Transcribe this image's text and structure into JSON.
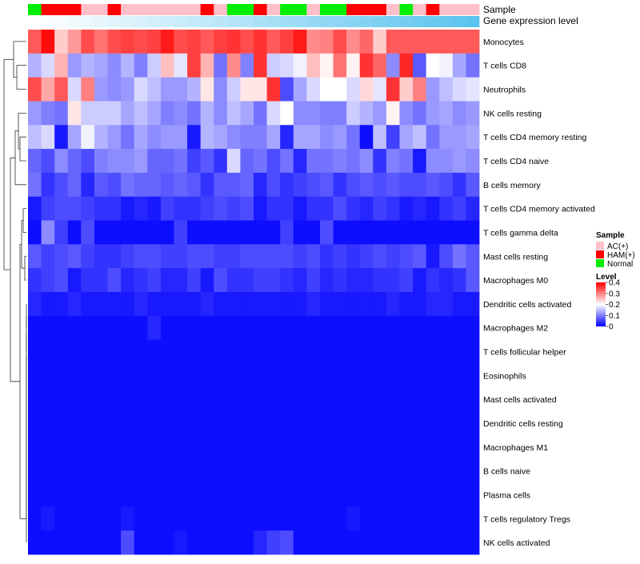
{
  "colors": {
    "low": "#0000ff",
    "mid": "#ffffff",
    "high": "#ff0000",
    "sample_ac": "#ffc0cb",
    "sample_ham": "#ff0000",
    "sample_normal": "#00ee00",
    "expression_annotation": "#5bc4ee"
  },
  "chart_data": {
    "type": "heatmap",
    "annotation_labels": {
      "sample": "Sample",
      "expression": "Gene expression level"
    },
    "legend": {
      "sample_title": "Sample",
      "sample_entries": [
        "AC(+)",
        "HAM(+)",
        "Normal"
      ],
      "level_title": "Level",
      "level_ticks": [
        "0.4",
        "0.3",
        "0.2",
        "0.1",
        "0"
      ],
      "level_tick_values": [
        0.4,
        0.3,
        0.2,
        0.1,
        0
      ],
      "level_range": [
        0,
        0.4
      ]
    },
    "columns_sample_group": [
      "Normal",
      "HAM(+)",
      "HAM(+)",
      "HAM(+)",
      "AC(+)",
      "AC(+)",
      "HAM(+)",
      "AC(+)",
      "AC(+)",
      "AC(+)",
      "AC(+)",
      "AC(+)",
      "AC(+)",
      "HAM(+)",
      "AC(+)",
      "Normal",
      "Normal",
      "HAM(+)",
      "AC(+)",
      "Normal",
      "Normal",
      "AC(+)",
      "Normal",
      "Normal",
      "HAM(+)",
      "HAM(+)",
      "HAM(+)",
      "AC(+)",
      "Normal",
      "AC(+)",
      "HAM(+)",
      "AC(+)",
      "AC(+)",
      "AC(+)"
    ],
    "expression_fraction": [
      0.0,
      0.03,
      0.06,
      0.09,
      0.12,
      0.15,
      0.18,
      0.21,
      0.24,
      0.27,
      0.3,
      0.33,
      0.36,
      0.39,
      0.42,
      0.45,
      0.48,
      0.52,
      0.55,
      0.58,
      0.61,
      0.64,
      0.67,
      0.7,
      0.73,
      0.76,
      0.79,
      0.82,
      0.85,
      0.88,
      0.91,
      0.94,
      0.97,
      1.0
    ],
    "rows": [
      {
        "label": "Monocytes",
        "values": [
          0.33,
          0.39,
          0.24,
          0.28,
          0.34,
          0.31,
          0.34,
          0.35,
          0.34,
          0.35,
          0.38,
          0.34,
          0.35,
          0.33,
          0.35,
          0.36,
          0.34,
          0.36,
          0.33,
          0.35,
          0.38,
          0.29,
          0.3,
          0.34,
          0.29,
          0.32,
          0.24,
          0.33,
          0.33,
          0.33,
          0.33,
          0.33,
          0.33,
          0.33
        ]
      },
      {
        "label": "T cells CD8",
        "values": [
          0.14,
          0.17,
          0.26,
          0.12,
          0.14,
          0.13,
          0.11,
          0.14,
          0.1,
          0.16,
          0.25,
          0.18,
          0.35,
          0.26,
          0.09,
          0.29,
          0.1,
          0.36,
          0.16,
          0.17,
          0.19,
          0.25,
          0.21,
          0.31,
          0.21,
          0.36,
          0.32,
          0.11,
          0.37,
          0.07,
          0.2,
          0.19,
          0.13,
          0.09
        ]
      },
      {
        "label": "Neutrophils",
        "values": [
          0.34,
          0.27,
          0.33,
          0.17,
          0.3,
          0.12,
          0.11,
          0.12,
          0.17,
          0.15,
          0.12,
          0.12,
          0.14,
          0.22,
          0.11,
          0.16,
          0.22,
          0.22,
          0.36,
          0.06,
          0.13,
          0.17,
          0.2,
          0.2,
          0.17,
          0.23,
          0.18,
          0.36,
          0.24,
          0.3,
          0.12,
          0.15,
          0.17,
          0.18
        ]
      },
      {
        "label": "NK cells resting",
        "values": [
          0.12,
          0.1,
          0.09,
          0.22,
          0.16,
          0.16,
          0.16,
          0.13,
          0.15,
          0.13,
          0.1,
          0.11,
          0.09,
          0.14,
          0.11,
          0.15,
          0.13,
          0.09,
          0.17,
          0.2,
          0.11,
          0.11,
          0.1,
          0.1,
          0.16,
          0.14,
          0.12,
          0.21,
          0.11,
          0.09,
          0.12,
          0.13,
          0.11,
          0.12
        ]
      },
      {
        "label": "T cells CD4 memory resting",
        "values": [
          0.15,
          0.17,
          0.02,
          0.13,
          0.19,
          0.14,
          0.12,
          0.09,
          0.13,
          0.11,
          0.12,
          0.12,
          0.02,
          0.14,
          0.13,
          0.11,
          0.1,
          0.1,
          0.13,
          0.03,
          0.13,
          0.13,
          0.11,
          0.12,
          0.09,
          0.01,
          0.15,
          0.05,
          0.13,
          0.15,
          0.09,
          0.12,
          0.12,
          0.13
        ]
      },
      {
        "label": "T cells CD4 naive",
        "values": [
          0.08,
          0.06,
          0.11,
          0.08,
          0.06,
          0.1,
          0.11,
          0.11,
          0.12,
          0.08,
          0.08,
          0.09,
          0.05,
          0.07,
          0.04,
          0.17,
          0.08,
          0.09,
          0.06,
          0.09,
          0.03,
          0.09,
          0.09,
          0.1,
          0.09,
          0.11,
          0.04,
          0.1,
          0.09,
          0.02,
          0.11,
          0.11,
          0.12,
          0.11
        ]
      },
      {
        "label": "B cells memory",
        "values": [
          0.09,
          0.04,
          0.06,
          0.08,
          0.03,
          0.07,
          0.06,
          0.09,
          0.08,
          0.08,
          0.07,
          0.08,
          0.07,
          0.04,
          0.07,
          0.07,
          0.08,
          0.03,
          0.06,
          0.04,
          0.05,
          0.06,
          0.07,
          0.04,
          0.06,
          0.07,
          0.06,
          0.07,
          0.06,
          0.06,
          0.07,
          0.06,
          0.04,
          0.07
        ]
      },
      {
        "label": "T cells CD4 memory activated",
        "values": [
          0.02,
          0.05,
          0.06,
          0.06,
          0.05,
          0.04,
          0.04,
          0.02,
          0.03,
          0.02,
          0.05,
          0.04,
          0.04,
          0.05,
          0.06,
          0.05,
          0.06,
          0.02,
          0.04,
          0.04,
          0.02,
          0.04,
          0.04,
          0.06,
          0.04,
          0.03,
          0.05,
          0.04,
          0.02,
          0.03,
          0.02,
          0.04,
          0.05,
          0.03
        ]
      },
      {
        "label": "T cells gamma delta",
        "values": [
          0.01,
          0.11,
          0.05,
          0.01,
          0.06,
          0.01,
          0.01,
          0.01,
          0.01,
          0.01,
          0.01,
          0.05,
          0.01,
          0.01,
          0.01,
          0.01,
          0.01,
          0.01,
          0.01,
          0.05,
          0.01,
          0.01,
          0.06,
          0.01,
          0.01,
          0.01,
          0.01,
          0.01,
          0.01,
          0.01,
          0.01,
          0.01,
          0.01,
          0.01
        ]
      },
      {
        "label": "Mast cells resting",
        "values": [
          0.07,
          0.05,
          0.06,
          0.07,
          0.05,
          0.04,
          0.04,
          0.05,
          0.06,
          0.06,
          0.05,
          0.05,
          0.06,
          0.06,
          0.05,
          0.05,
          0.06,
          0.06,
          0.06,
          0.06,
          0.05,
          0.06,
          0.04,
          0.05,
          0.04,
          0.05,
          0.06,
          0.05,
          0.06,
          0.07,
          0.02,
          0.06,
          0.09,
          0.07
        ]
      },
      {
        "label": "Macrophages M0",
        "values": [
          0.04,
          0.05,
          0.06,
          0.02,
          0.04,
          0.04,
          0.06,
          0.03,
          0.04,
          0.05,
          0.03,
          0.03,
          0.05,
          0.02,
          0.06,
          0.04,
          0.04,
          0.05,
          0.05,
          0.04,
          0.03,
          0.05,
          0.03,
          0.04,
          0.03,
          0.03,
          0.04,
          0.04,
          0.05,
          0.02,
          0.04,
          0.03,
          0.04,
          0.07
        ]
      },
      {
        "label": "Dendritic cells activated",
        "values": [
          0.03,
          0.02,
          0.02,
          0.03,
          0.02,
          0.02,
          0.02,
          0.02,
          0.03,
          0.02,
          0.02,
          0.02,
          0.02,
          0.03,
          0.02,
          0.02,
          0.02,
          0.02,
          0.02,
          0.02,
          0.02,
          0.03,
          0.02,
          0.02,
          0.02,
          0.02,
          0.02,
          0.03,
          0.02,
          0.02,
          0.03,
          0.03,
          0.02,
          0.02
        ]
      },
      {
        "label": "Macrophages M2",
        "values": [
          0.01,
          0.01,
          0.01,
          0.01,
          0.01,
          0.01,
          0.01,
          0.01,
          0.01,
          0.03,
          0.01,
          0.01,
          0.01,
          0.01,
          0.01,
          0.01,
          0.01,
          0.01,
          0.01,
          0.01,
          0.01,
          0.01,
          0.01,
          0.01,
          0.01,
          0.01,
          0.01,
          0.01,
          0.01,
          0.01,
          0.01,
          0.01,
          0.01,
          0.01
        ]
      },
      {
        "label": "T cells follicular helper",
        "values": [
          0.01,
          0.01,
          0.01,
          0.01,
          0.01,
          0.01,
          0.01,
          0.01,
          0.01,
          0.01,
          0.01,
          0.01,
          0.01,
          0.01,
          0.01,
          0.01,
          0.01,
          0.01,
          0.01,
          0.01,
          0.01,
          0.01,
          0.01,
          0.01,
          0.01,
          0.01,
          0.01,
          0.01,
          0.01,
          0.01,
          0.01,
          0.01,
          0.01,
          0.01
        ]
      },
      {
        "label": "Eosinophils",
        "values": [
          0.01,
          0.01,
          0.01,
          0.01,
          0.01,
          0.01,
          0.01,
          0.01,
          0.01,
          0.01,
          0.01,
          0.01,
          0.01,
          0.01,
          0.01,
          0.01,
          0.01,
          0.01,
          0.01,
          0.01,
          0.01,
          0.01,
          0.01,
          0.01,
          0.01,
          0.01,
          0.01,
          0.01,
          0.01,
          0.01,
          0.01,
          0.01,
          0.01,
          0.01
        ]
      },
      {
        "label": "Mast cells activated",
        "values": [
          0.01,
          0.01,
          0.01,
          0.01,
          0.01,
          0.01,
          0.01,
          0.01,
          0.01,
          0.01,
          0.01,
          0.01,
          0.01,
          0.01,
          0.01,
          0.01,
          0.01,
          0.01,
          0.01,
          0.01,
          0.01,
          0.01,
          0.01,
          0.01,
          0.01,
          0.01,
          0.01,
          0.01,
          0.01,
          0.01,
          0.01,
          0.01,
          0.01,
          0.01
        ]
      },
      {
        "label": "Dendritic cells resting",
        "values": [
          0.01,
          0.01,
          0.01,
          0.01,
          0.01,
          0.01,
          0.01,
          0.01,
          0.01,
          0.01,
          0.01,
          0.01,
          0.01,
          0.01,
          0.01,
          0.01,
          0.01,
          0.01,
          0.01,
          0.01,
          0.01,
          0.01,
          0.01,
          0.01,
          0.01,
          0.01,
          0.01,
          0.01,
          0.01,
          0.01,
          0.01,
          0.01,
          0.01,
          0.01
        ]
      },
      {
        "label": "Macrophages M1",
        "values": [
          0.01,
          0.01,
          0.01,
          0.01,
          0.01,
          0.01,
          0.01,
          0.01,
          0.01,
          0.01,
          0.01,
          0.01,
          0.01,
          0.01,
          0.01,
          0.01,
          0.01,
          0.01,
          0.01,
          0.01,
          0.01,
          0.01,
          0.01,
          0.01,
          0.01,
          0.01,
          0.01,
          0.01,
          0.01,
          0.01,
          0.01,
          0.01,
          0.01,
          0.01
        ]
      },
      {
        "label": "B cells naive",
        "values": [
          0.01,
          0.01,
          0.01,
          0.01,
          0.01,
          0.01,
          0.01,
          0.01,
          0.01,
          0.01,
          0.01,
          0.01,
          0.01,
          0.01,
          0.01,
          0.01,
          0.01,
          0.01,
          0.01,
          0.01,
          0.01,
          0.01,
          0.01,
          0.01,
          0.01,
          0.01,
          0.01,
          0.01,
          0.01,
          0.01,
          0.01,
          0.01,
          0.01,
          0.01
        ]
      },
      {
        "label": "Plasma cells",
        "values": [
          0.01,
          0.01,
          0.01,
          0.01,
          0.01,
          0.01,
          0.01,
          0.01,
          0.01,
          0.01,
          0.01,
          0.01,
          0.01,
          0.01,
          0.01,
          0.01,
          0.01,
          0.01,
          0.01,
          0.01,
          0.01,
          0.01,
          0.01,
          0.01,
          0.01,
          0.01,
          0.01,
          0.01,
          0.01,
          0.01,
          0.01,
          0.01,
          0.01,
          0.01
        ]
      },
      {
        "label": "T cells regulatory  Tregs",
        "values": [
          0.01,
          0.02,
          0.01,
          0.01,
          0.01,
          0.01,
          0.01,
          0.02,
          0.01,
          0.01,
          0.01,
          0.01,
          0.01,
          0.01,
          0.01,
          0.01,
          0.01,
          0.01,
          0.01,
          0.01,
          0.01,
          0.01,
          0.01,
          0.01,
          0.02,
          0.01,
          0.01,
          0.01,
          0.01,
          0.01,
          0.01,
          0.01,
          0.01,
          0.01
        ]
      },
      {
        "label": "NK cells activated",
        "values": [
          0.01,
          0.01,
          0.01,
          0.01,
          0.01,
          0.01,
          0.01,
          0.06,
          0.01,
          0.01,
          0.01,
          0.02,
          0.01,
          0.01,
          0.01,
          0.01,
          0.01,
          0.03,
          0.05,
          0.06,
          0.01,
          0.01,
          0.01,
          0.01,
          0.01,
          0.01,
          0.01,
          0.01,
          0.01,
          0.01,
          0.01,
          0.01,
          0.01,
          0.01
        ]
      }
    ]
  }
}
